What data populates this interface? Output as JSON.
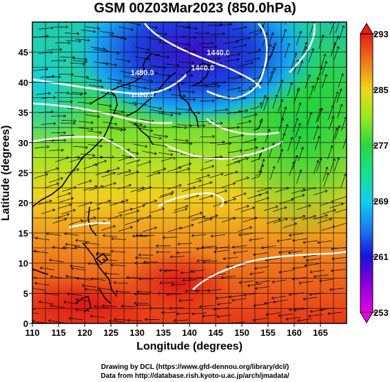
{
  "title": "GSM 00Z03Mar2023 (850.0hPa)",
  "x_axis": {
    "label": "Longitude (degrees)",
    "ticks": [
      "110",
      "115",
      "120",
      "125",
      "130",
      "135",
      "140",
      "145",
      "150",
      "155",
      "160",
      "165"
    ],
    "range": [
      110,
      170
    ]
  },
  "y_axis": {
    "label": "Latitude (degrees)",
    "ticks": [
      "0",
      "5",
      "10",
      "15",
      "20",
      "25",
      "30",
      "35",
      "40",
      "45"
    ],
    "range": [
      0,
      50
    ]
  },
  "colorbar": {
    "ticks": [
      "253",
      "261",
      "269",
      "277",
      "285",
      "293"
    ],
    "range": [
      253,
      293
    ],
    "colors": [
      "#e500e5",
      "#7a00d0",
      "#1a0fd8",
      "#1e6ef0",
      "#12c8f0",
      "#18e0a8",
      "#20d850",
      "#60e020",
      "#c8e818",
      "#f0c818",
      "#f08018",
      "#e83a18",
      "#e02018"
    ]
  },
  "contour_labels": [
    {
      "text": "1440.0",
      "lon": 145.5,
      "lat": 44.5
    },
    {
      "text": "1440.0",
      "lon": 142.5,
      "lat": 42.0
    },
    {
      "text": "1480.0",
      "lon": 131,
      "lat": 41.2
    },
    {
      "text": "1520.0",
      "lon": 131,
      "lat": 37.5
    }
  ],
  "credits": {
    "line1": "Drawing by DCL (https://www.gfd-dennou.org/library/dcl/)",
    "line2": "Data from http://database.rish.kyoto-u.ac.jp/arch/jmadata/"
  }
}
